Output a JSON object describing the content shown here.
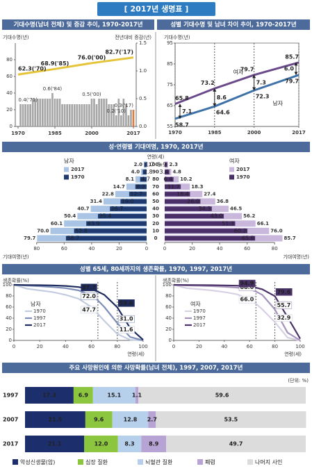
{
  "title": "[ 2017년 생명표 ]",
  "chart_data": [
    {
      "type": "combo",
      "title": "기대수명(남녀 전체) 및 증감 추이, 1970-2017년",
      "ylabel": "기대수명(년)",
      "y2label": "전년대비 증감(년)",
      "ylim": [
        0,
        100
      ],
      "yticks": [
        0,
        20,
        40,
        60,
        80
      ],
      "y2lim": [
        0,
        1.5
      ],
      "y2ticks": [
        {
          "value": 0,
          "label": "0.0"
        },
        {
          "value": 0.5,
          "label": "0.5"
        },
        {
          "value": 1,
          "label": "1.0"
        },
        {
          "value": 1.5,
          "label": "1.5"
        }
      ],
      "xlim": [
        1970,
        2017
      ],
      "xticks": [
        1970,
        1985,
        2000,
        2017
      ],
      "series": [
        {
          "type": "bar",
          "axis": "y2",
          "x": [
            1971,
            1972,
            1973,
            1974,
            1975,
            1976,
            1977,
            1978,
            1979,
            1980,
            1981,
            1982,
            1983,
            1984,
            1985,
            1986,
            1987,
            1988,
            1989,
            1990,
            1991,
            1992,
            1993,
            1994,
            1995,
            1996,
            1997,
            1998,
            1999,
            2000,
            2001,
            2002,
            2003,
            2004,
            2005,
            2006,
            2007,
            2008,
            2009,
            2010,
            2011,
            2012,
            2013,
            2014,
            2015,
            2016,
            2017
          ],
          "values": [
            0.4,
            0.4,
            0.4,
            0.4,
            0.4,
            0.5,
            0.5,
            0.5,
            0.5,
            0.5,
            0.5,
            0.5,
            0.5,
            0.6,
            0.5,
            0.5,
            0.5,
            0.4,
            0.4,
            0.4,
            0.4,
            0.4,
            0.4,
            0.4,
            0.4,
            0.4,
            0.4,
            0.4,
            0.4,
            0.5,
            0.5,
            0.4,
            0.5,
            0.5,
            0.5,
            0.5,
            0.4,
            0.4,
            0.4,
            0.2,
            0.5,
            0.2,
            0.5,
            0.4,
            0.2,
            0.3,
            0.3
          ],
          "value_labels": [
            "0.4('71)",
            null,
            null,
            null,
            null,
            null,
            null,
            null,
            null,
            null,
            null,
            null,
            null,
            "0.6('84)",
            null,
            null,
            null,
            null,
            null,
            null,
            null,
            null,
            null,
            null,
            null,
            null,
            null,
            null,
            null,
            "0.5('00)",
            null,
            null,
            null,
            null,
            null,
            null,
            null,
            null,
            null,
            "0.2('10)",
            null,
            null,
            null,
            null,
            null,
            null,
            "0.3('17)"
          ],
          "colors": [
            "#a6a6a6",
            "#a6a6a6",
            "#a6a6a6",
            "#a6a6a6",
            "#a6a6a6",
            "#a6a6a6",
            "#a6a6a6",
            "#a6a6a6",
            "#a6a6a6",
            "#a6a6a6",
            "#a6a6a6",
            "#a6a6a6",
            "#a6a6a6",
            "#a6a6a6",
            "#a6a6a6",
            "#a6a6a6",
            "#a6a6a6",
            "#a6a6a6",
            "#a6a6a6",
            "#a6a6a6",
            "#a6a6a6",
            "#a6a6a6",
            "#a6a6a6",
            "#a6a6a6",
            "#a6a6a6",
            "#a6a6a6",
            "#a6a6a6",
            "#a6a6a6",
            "#a6a6a6",
            "#a6a6a6",
            "#a6a6a6",
            "#a6a6a6",
            "#a6a6a6",
            "#a6a6a6",
            "#a6a6a6",
            "#a6a6a6",
            "#a6a6a6",
            "#a6a6a6",
            "#a6a6a6",
            "#a6a6a6",
            "#a6a6a6",
            "#a6a6a6",
            "#a6a6a6",
            "#a6a6a6",
            "#a6a6a6",
            "#a6a6a6",
            "#e07b39"
          ]
        },
        {
          "type": "line",
          "color": "#e6c43a",
          "x": [
            1970,
            1985,
            2000,
            2017
          ],
          "values": [
            62.3,
            68.9,
            76,
            82.7
          ],
          "value_labels": [
            "62.3('70)",
            "68.9('85)",
            "76.0('00)",
            "82.7('17)"
          ]
        }
      ]
    },
    {
      "type": "line",
      "title": "성별 기대수명 및 남녀 차이 추이, 1970-2017년",
      "ylabel": "기대수명(년)",
      "ylim": [
        55,
        95
      ],
      "yticks": [
        55,
        65,
        75,
        85,
        95
      ],
      "xlim": [
        1970,
        2017
      ],
      "xticks": [
        1970,
        1985,
        2000,
        2017
      ],
      "x": [
        1970,
        1985,
        2000,
        2017
      ],
      "series": [
        {
          "name": "여자",
          "color": "#6a4a8a",
          "values": [
            65.8,
            73.2,
            79.7,
            85.7
          ]
        },
        {
          "name": "남자",
          "color": "#3e72a8",
          "values": [
            58.7,
            64.6,
            72.3,
            79.7
          ]
        }
      ],
      "differences": {
        "values": [
          7.1,
          8.6,
          7.3,
          6.0
        ],
        "value_labels": [
          "7.1",
          "8.6",
          "7.3",
          "6.0"
        ]
      }
    },
    {
      "type": "pyramid",
      "title": "성·연령별 기대여명, 1970, 2017년",
      "category_label": "연령(세)",
      "xlabel": "기대여명(년)",
      "categories": [
        "100+",
        "90",
        "80",
        "70",
        "60",
        "50",
        "40",
        "30",
        "20",
        "10",
        "0"
      ],
      "xlim": [
        0,
        90
      ],
      "xticks": [
        0,
        20,
        40,
        60,
        80
      ],
      "groups": [
        {
          "name": "남자",
          "color": "#1f3a70",
          "series": [
            {
              "name": "2017",
              "color": "#a9c4e4",
              "values": [
                2.0,
                4.0,
                8.1,
                14.7,
                22.8,
                31.4,
                40.7,
                50.4,
                60.1,
                70.0,
                79.7
              ],
              "value_labels": [
                "2.0",
                "4.0",
                "8.1",
                "14.7",
                "22.8",
                "31.4",
                "40.7",
                "50.4",
                "60.1",
                "70.0",
                "79.7"
              ]
            },
            {
              "name": "1970",
              "color": "#1f3a70",
              "values": [
                1.7,
                2.8,
                4.7,
                8.2,
                12.7,
                19.0,
                26.7,
                35.4,
                43.9,
                52.8,
                58.7
              ],
              "value_labels": [
                "1.7",
                "2.8",
                "4.7",
                "8.2",
                "12.7",
                "19.0",
                "26.7",
                "35.4",
                "43.9",
                "52.8",
                "58.7"
              ]
            }
          ]
        },
        {
          "name": "여자",
          "color": "#5a3a7a",
          "series": [
            {
              "name": "2017",
              "color": "#c9b8dc",
              "values": [
                2.3,
                4.8,
                10.2,
                18.3,
                27.4,
                36.8,
                46.5,
                56.2,
                66.1,
                76.0,
                85.7
              ],
              "value_labels": [
                "2.3",
                "4.8",
                "10.2",
                "18.3",
                "27.4",
                "36.8",
                "46.5",
                "56.2",
                "66.1",
                "76.0",
                "85.7"
              ]
            },
            {
              "name": "1970",
              "color": "#4a2e68",
              "values": [
                1.9,
                3.4,
                6.4,
                11.7,
                18.4,
                26.0,
                34.3,
                43.0,
                51.3,
                60.2,
                65.8
              ],
              "value_labels": [
                "1.9",
                "3.4",
                "6.4",
                "11.7",
                "18.4",
                "26.0",
                "34.3",
                "43.0",
                "51.3",
                "60.2",
                "65.8"
              ]
            }
          ]
        }
      ]
    },
    {
      "type": "line",
      "title": "성별 65세, 80세까지의 생존확률, 1970, 1997, 2017년",
      "label": "남자",
      "ylabel": "생존확률(%)",
      "xlabel": "연령(세)",
      "ylim": [
        0,
        100
      ],
      "yticks": [
        0,
        20,
        40,
        60,
        80,
        100
      ],
      "xlim": [
        0,
        100
      ],
      "xticks": [
        0,
        20,
        40,
        60,
        80,
        100
      ],
      "x": [
        0,
        10,
        20,
        30,
        40,
        50,
        60,
        65,
        70,
        80,
        90,
        100
      ],
      "series": [
        {
          "name": "1970",
          "color": "#c3cbe0",
          "values": [
            100,
            93,
            90,
            87,
            82,
            75,
            60,
            47.7,
            35,
            11.6,
            1,
            0
          ],
          "value_labels": [
            null,
            null,
            null,
            null,
            null,
            null,
            null,
            "47.7",
            null,
            "11.6",
            null,
            null
          ]
        },
        {
          "name": "1997",
          "color": "#7d8db8",
          "values": [
            100,
            98.5,
            97.5,
            96,
            94,
            90,
            81,
            72.0,
            60,
            31.0,
            6,
            0
          ],
          "value_labels": [
            null,
            null,
            null,
            null,
            null,
            null,
            null,
            "72.0",
            null,
            "31.0",
            null,
            null
          ]
        },
        {
          "name": "2017",
          "color": "#1e2b5e",
          "values": [
            100,
            99.6,
            99.4,
            99,
            98,
            96,
            92,
            87.7,
            82,
            59.6,
            22,
            1
          ],
          "value_labels": [
            null,
            null,
            null,
            null,
            null,
            null,
            null,
            "87.7",
            null,
            "59.6",
            null,
            null
          ]
        }
      ]
    },
    {
      "type": "line",
      "label": "여자",
      "ylabel": "생존확률(%)",
      "xlabel": "연령(세)",
      "ylim": [
        0,
        100
      ],
      "yticks": [
        0,
        20,
        40,
        60,
        80,
        100
      ],
      "xlim": [
        0,
        100
      ],
      "xticks": [
        0,
        20,
        40,
        60,
        80,
        100
      ],
      "x": [
        0,
        10,
        20,
        30,
        40,
        50,
        60,
        65,
        70,
        80,
        90,
        100
      ],
      "series": [
        {
          "name": "1970",
          "color": "#d8d0e3",
          "values": [
            100,
            94,
            92,
            90,
            87,
            83,
            74,
            66.0,
            56,
            32.9,
            5,
            0
          ],
          "value_labels": [
            null,
            null,
            null,
            null,
            null,
            null,
            null,
            "66.0",
            null,
            "32.9",
            null,
            null
          ]
        },
        {
          "name": "1997",
          "color": "#a493bb",
          "values": [
            100,
            98.8,
            98.3,
            97.6,
            96.5,
            95,
            92,
            88.0,
            82,
            55.7,
            14,
            0
          ],
          "value_labels": [
            null,
            null,
            null,
            null,
            null,
            null,
            null,
            "88.0",
            null,
            "55.7",
            null,
            null
          ]
        },
        {
          "name": "2017",
          "color": "#4a3268",
          "values": [
            100,
            99.7,
            99.6,
            99.4,
            99,
            98.5,
            97,
            94.9,
            92,
            79.6,
            42,
            3
          ],
          "value_labels": [
            null,
            null,
            null,
            null,
            null,
            null,
            null,
            "94.9",
            null,
            "79.6",
            null,
            null
          ]
        }
      ]
    },
    {
      "type": "stacked_barh",
      "title": "주요 사망원인에 의한 사망확률(남녀 전체), 1997, 2007, 2017년",
      "unit": "(단위: %)",
      "categories": [
        "1997",
        "2007",
        "2017"
      ],
      "xlim": [
        0,
        100
      ],
      "series": [
        {
          "name": "악성신생물(암)",
          "color": "#1c2e6b",
          "values": [
            17.3,
            21.5,
            21.1
          ]
        },
        {
          "name": "심장 질환",
          "color": "#8cc63f",
          "values": [
            6.9,
            9.6,
            12.0
          ],
          "value_labels": [
            "6.9",
            "9.6",
            "12.0"
          ]
        },
        {
          "name": "뇌혈관 질환",
          "color": "#b6d0ec",
          "values": [
            15.1,
            12.8,
            8.3
          ]
        },
        {
          "name": "폐렴",
          "color": "#b8a4d4",
          "values": [
            1.1,
            2.7,
            8.9
          ]
        },
        {
          "name": "나머지 사인",
          "color": "#dcdcdc",
          "values": [
            59.6,
            53.5,
            49.7
          ]
        }
      ]
    }
  ]
}
